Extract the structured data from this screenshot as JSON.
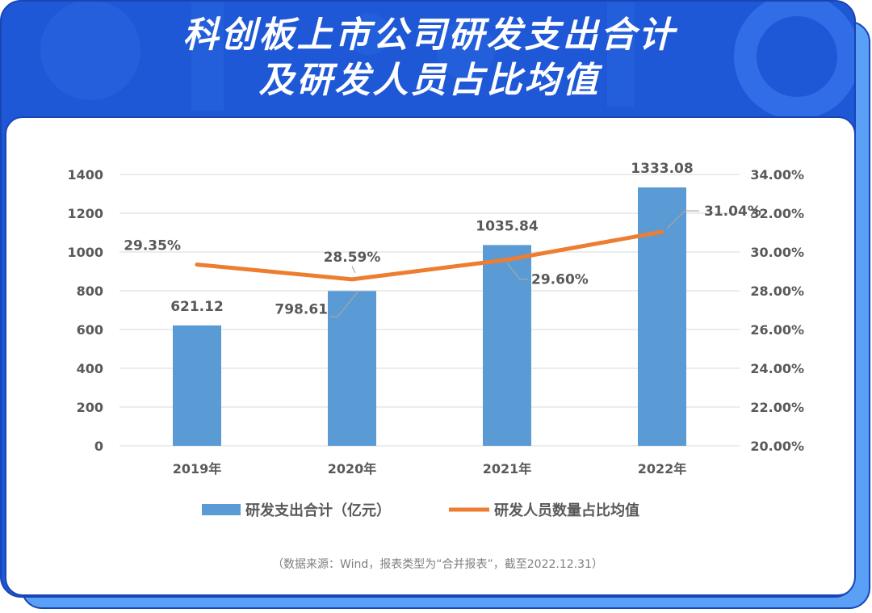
{
  "header": {
    "title_line1": "科创板上市公司研发支出合计",
    "title_line2": "及研发人员占比均值"
  },
  "colors": {
    "bar": "#5b9bd5",
    "line": "#ed7d31",
    "frame_blue": "#1f58d6",
    "shadow_blue": "#5aa0f7",
    "text_gray": "#595959"
  },
  "chart_data": {
    "type": "bar",
    "categories": [
      "2019年",
      "2020年",
      "2021年",
      "2022年"
    ],
    "series": [
      {
        "name": "研发支出合计（亿元）",
        "type": "bar",
        "axis": "left",
        "values": [
          621.12,
          798.61,
          1035.84,
          1333.08
        ],
        "labels": [
          "621.12",
          "798.61",
          "1035.84",
          "1333.08"
        ]
      },
      {
        "name": "研发人员数量占比均值",
        "type": "line",
        "axis": "right",
        "values": [
          29.35,
          28.59,
          29.6,
          31.04
        ],
        "labels": [
          "29.35%",
          "28.59%",
          "29.60%",
          "31.04%"
        ]
      }
    ],
    "y_left": {
      "min": 0,
      "max": 1400,
      "ticks": [
        "0",
        "200",
        "400",
        "600",
        "800",
        "1000",
        "1200",
        "1400"
      ]
    },
    "y_right": {
      "min": 20,
      "max": 34,
      "ticks": [
        "20.00%",
        "22.00%",
        "24.00%",
        "26.00%",
        "28.00%",
        "30.00%",
        "32.00%",
        "34.00%"
      ]
    },
    "grid": true,
    "legend_position": "bottom"
  },
  "footer": {
    "source": "（数据来源：Wind，报表类型为“合并报表”，截至2022.12.31）"
  }
}
